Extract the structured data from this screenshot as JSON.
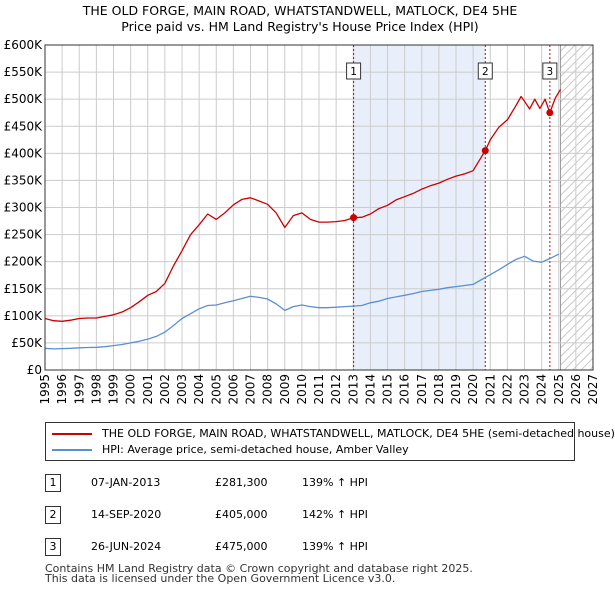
{
  "header": {
    "title_line1": "THE OLD FORGE, MAIN ROAD, WHATSTANDWELL, MATLOCK, DE4 5HE",
    "title_line2": "Price paid vs. HM Land Registry's House Price Index (HPI)"
  },
  "colors": {
    "property": "#cc0000",
    "hpi": "#5b8fd4",
    "shade": "#e8eefa",
    "grid": "#cccccc",
    "marker_line": "#cc0000"
  },
  "chart_data": {
    "type": "line",
    "title": "Price paid vs. HM Land Registry's House Price Index (HPI)",
    "xlabel": "",
    "ylabel": "",
    "xlim": [
      1995,
      2027
    ],
    "ylim": [
      0,
      600000
    ],
    "grid": true,
    "y_ticks": [
      0,
      50000,
      100000,
      150000,
      200000,
      250000,
      300000,
      350000,
      400000,
      450000,
      500000,
      550000,
      600000
    ],
    "y_tick_labels": [
      "£0",
      "£50K",
      "£100K",
      "£150K",
      "£200K",
      "£250K",
      "£300K",
      "£350K",
      "£400K",
      "£450K",
      "£500K",
      "£550K",
      "£600K"
    ],
    "x_ticks": [
      1995,
      1996,
      1997,
      1998,
      1999,
      2000,
      2001,
      2002,
      2003,
      2004,
      2005,
      2006,
      2007,
      2008,
      2009,
      2010,
      2011,
      2012,
      2013,
      2014,
      2015,
      2016,
      2017,
      2018,
      2019,
      2020,
      2021,
      2022,
      2023,
      2024,
      2025,
      2026,
      2027
    ],
    "x_tick_labels": [
      "1995",
      "1996",
      "1997",
      "1998",
      "1999",
      "2000",
      "2001",
      "2002",
      "2003",
      "2004",
      "2005",
      "2006",
      "2007",
      "2008",
      "2009",
      "2010",
      "2011",
      "2012",
      "2013",
      "2014",
      "2015",
      "2016",
      "2017",
      "2018",
      "2019",
      "2020",
      "2021",
      "2022",
      "2023",
      "2024",
      "2025",
      "2026",
      "2027"
    ],
    "shaded_range": [
      2013.02,
      2020.71
    ],
    "future_from": 2025.1,
    "series": [
      {
        "name": "THE OLD FORGE, MAIN ROAD, WHATSTANDWELL, MATLOCK, DE4 5HE (semi-detached house)",
        "color": "#cc0000",
        "x": [
          1995.0,
          1995.5,
          1996.0,
          1996.5,
          1997.0,
          1997.5,
          1998.0,
          1998.5,
          1999.0,
          1999.5,
          2000.0,
          2000.5,
          2001.0,
          2001.5,
          2002.0,
          2002.5,
          2003.0,
          2003.5,
          2004.0,
          2004.5,
          2005.0,
          2005.5,
          2006.0,
          2006.5,
          2007.0,
          2007.5,
          2008.0,
          2008.5,
          2009.0,
          2009.5,
          2010.0,
          2010.5,
          2011.0,
          2011.5,
          2012.0,
          2012.5,
          2013.02,
          2013.5,
          2014.0,
          2014.5,
          2015.0,
          2015.5,
          2016.0,
          2016.5,
          2017.0,
          2017.5,
          2018.0,
          2018.5,
          2019.0,
          2019.5,
          2020.0,
          2020.71,
          2021.0,
          2021.5,
          2022.0,
          2022.5,
          2022.8,
          2023.0,
          2023.3,
          2023.6,
          2023.9,
          2024.2,
          2024.48,
          2024.8,
          2025.1
        ],
        "y": [
          95000,
          91000,
          90000,
          92000,
          95000,
          96000,
          96000,
          99000,
          102000,
          107000,
          115000,
          126000,
          138000,
          145000,
          160000,
          192000,
          220000,
          250000,
          268000,
          288000,
          278000,
          290000,
          305000,
          315000,
          318000,
          312000,
          306000,
          290000,
          263000,
          285000,
          290000,
          278000,
          273000,
          273000,
          274000,
          276000,
          281300,
          282000,
          288000,
          298000,
          304000,
          314000,
          320000,
          326000,
          334000,
          340000,
          345000,
          352000,
          358000,
          362000,
          368000,
          405000,
          425000,
          448000,
          462000,
          488000,
          505000,
          496000,
          482000,
          500000,
          483000,
          500000,
          475000,
          502000,
          518000
        ]
      },
      {
        "name": "HPI: Average price, semi-detached house, Amber Valley",
        "color": "#5b8fd4",
        "x": [
          1995.0,
          1995.5,
          1996.0,
          1996.5,
          1997.0,
          1997.5,
          1998.0,
          1998.5,
          1999.0,
          1999.5,
          2000.0,
          2000.5,
          2001.0,
          2001.5,
          2002.0,
          2002.5,
          2003.0,
          2003.5,
          2004.0,
          2004.5,
          2005.0,
          2005.5,
          2006.0,
          2006.5,
          2007.0,
          2007.5,
          2008.0,
          2008.5,
          2009.0,
          2009.5,
          2010.0,
          2010.5,
          2011.0,
          2011.5,
          2012.0,
          2012.5,
          2013.0,
          2013.5,
          2014.0,
          2014.5,
          2015.0,
          2015.5,
          2016.0,
          2016.5,
          2017.0,
          2017.5,
          2018.0,
          2018.5,
          2019.0,
          2019.5,
          2020.0,
          2020.5,
          2021.0,
          2021.5,
          2022.0,
          2022.5,
          2023.0,
          2023.5,
          2024.0,
          2024.5,
          2025.0
        ],
        "y": [
          40000,
          39000,
          39500,
          40000,
          41000,
          41500,
          42000,
          43000,
          45000,
          47000,
          50000,
          53000,
          57000,
          62000,
          70000,
          82000,
          95000,
          104000,
          113000,
          119000,
          120000,
          124000,
          128000,
          132000,
          136000,
          134000,
          131000,
          122000,
          110000,
          117000,
          120000,
          117000,
          115000,
          115000,
          116000,
          117000,
          118000,
          119000,
          124000,
          127000,
          132000,
          135000,
          138000,
          141000,
          145000,
          147000,
          149000,
          152000,
          154000,
          156000,
          158000,
          167000,
          176000,
          185000,
          195000,
          204000,
          210000,
          201000,
          199000,
          206000,
          214000
        ]
      }
    ],
    "annotations": [
      {
        "label": "1",
        "x": 2013.02,
        "y": 281300
      },
      {
        "label": "2",
        "x": 2020.71,
        "y": 405000
      },
      {
        "label": "3",
        "x": 2024.48,
        "y": 475000
      }
    ]
  },
  "legend": {
    "property_label": "THE OLD FORGE, MAIN ROAD, WHATSTANDWELL, MATLOCK, DE4 5HE (semi-detached house)",
    "hpi_label": "HPI: Average price, semi-detached house, Amber Valley"
  },
  "sales": [
    {
      "num": "1",
      "date": "07-JAN-2013",
      "price": "£281,300",
      "hpi": "139% ↑ HPI"
    },
    {
      "num": "2",
      "date": "14-SEP-2020",
      "price": "£405,000",
      "hpi": "142% ↑ HPI"
    },
    {
      "num": "3",
      "date": "26-JUN-2024",
      "price": "£475,000",
      "hpi": "139% ↑ HPI"
    }
  ],
  "footer": {
    "line1": "Contains HM Land Registry data © Crown copyright and database right 2025.",
    "line2": "This data is licensed under the Open Government Licence v3.0."
  }
}
